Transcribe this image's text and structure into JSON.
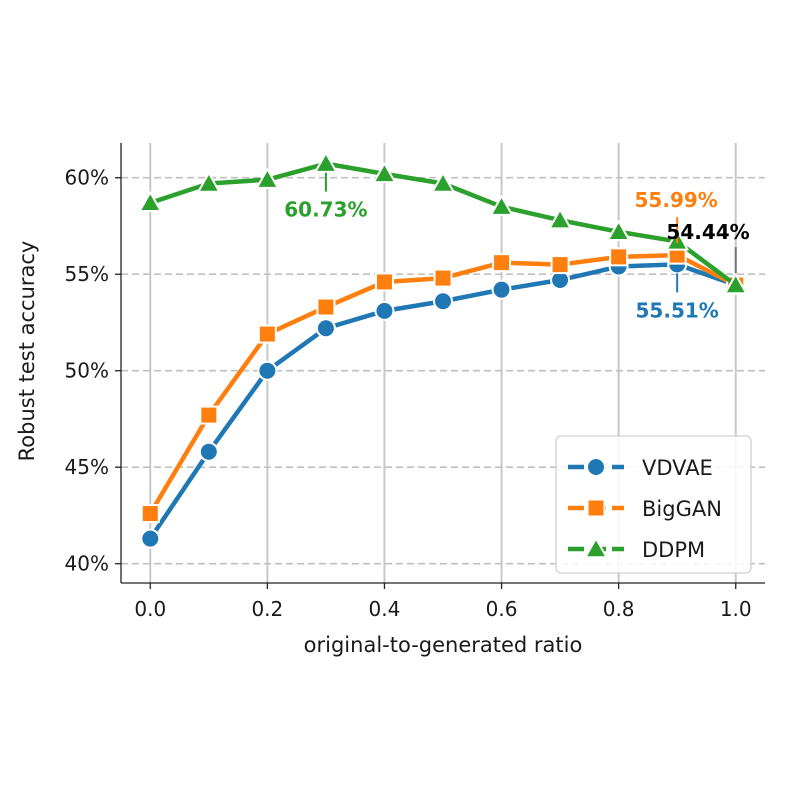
{
  "chart_data": {
    "type": "line",
    "xlabel": "original-to-generated ratio",
    "ylabel": "Robust test accuracy",
    "xlim": [
      -0.05,
      1.05
    ],
    "ylim": [
      39,
      61.8
    ],
    "x_ticks": [
      0.0,
      0.2,
      0.4,
      0.6,
      0.8,
      1.0
    ],
    "x_tick_labels": [
      "0.0",
      "0.2",
      "0.4",
      "0.6",
      "0.8",
      "1.0"
    ],
    "y_ticks": [
      40,
      45,
      50,
      55,
      60
    ],
    "y_tick_labels": [
      "40%",
      "45%",
      "50%",
      "55%",
      "60%"
    ],
    "grid": true,
    "legend_position": "bottom-right",
    "x": [
      0.0,
      0.1,
      0.2,
      0.3,
      0.4,
      0.5,
      0.6,
      0.7,
      0.8,
      0.9,
      1.0
    ],
    "series": [
      {
        "name": "VDVAE",
        "color": "#1f77b4",
        "marker": "circle",
        "values": [
          41.3,
          45.8,
          50.0,
          52.2,
          53.1,
          53.6,
          54.2,
          54.7,
          55.4,
          55.51,
          54.44
        ]
      },
      {
        "name": "BigGAN",
        "color": "#ff7f0e",
        "marker": "square",
        "values": [
          42.6,
          47.7,
          51.9,
          53.3,
          54.6,
          54.8,
          55.6,
          55.5,
          55.9,
          55.99,
          54.44
        ]
      },
      {
        "name": "DDPM",
        "color": "#2ca02c",
        "marker": "triangle",
        "values": [
          58.7,
          59.7,
          59.9,
          60.73,
          60.2,
          59.7,
          58.5,
          57.8,
          57.2,
          56.7,
          54.44
        ]
      }
    ],
    "annotations": [
      {
        "text": "60.73%",
        "x": 0.3,
        "y": 60.73,
        "color": "#2ca02c",
        "placement": "below"
      },
      {
        "text": "55.99%",
        "x": 0.9,
        "y": 55.99,
        "color": "#ff7f0e",
        "placement": "above"
      },
      {
        "text": "55.51%",
        "x": 0.9,
        "y": 55.51,
        "color": "#1f77b4",
        "placement": "below"
      },
      {
        "text": "54.44%",
        "x": 1.0,
        "y": 54.44,
        "color": "#000000",
        "placement": "above"
      }
    ]
  }
}
